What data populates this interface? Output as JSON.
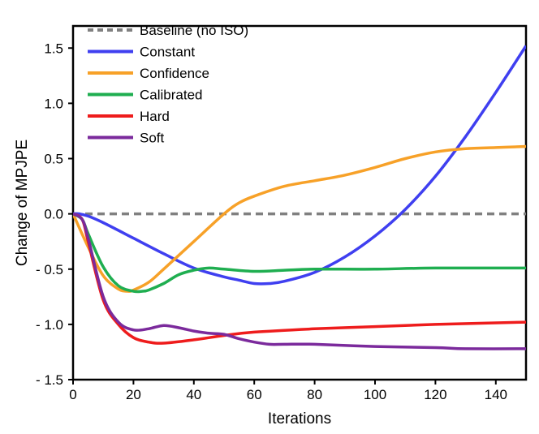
{
  "chart_data": {
    "type": "line",
    "title": "",
    "xlabel": "Iterations",
    "ylabel": "Change of MPJPE",
    "xlim": [
      0,
      150
    ],
    "ylim": [
      -1.5,
      1.7
    ],
    "xticks": [
      0,
      20,
      40,
      60,
      80,
      100,
      120,
      140
    ],
    "xtick_labels": [
      "0",
      "20",
      "40",
      "60",
      "80",
      "100",
      "120",
      "140"
    ],
    "yticks": [
      1.5,
      1.0,
      0.5,
      0.0,
      -0.5,
      -1.0,
      -1.5
    ],
    "ytick_labels": [
      "1.5",
      "1.0",
      "0.5",
      "0.0",
      "- 0.5",
      "- 1.0",
      "- 1.5"
    ],
    "grid": false,
    "legend_position": "top-left",
    "series": [
      {
        "name": "Baseline (no ISO)",
        "color": "#808080",
        "dashed": true,
        "x": [
          0,
          150
        ],
        "y": [
          0.0,
          0.0
        ]
      },
      {
        "name": "Constant",
        "color": "#3f3ff0",
        "dashed": false,
        "x": [
          0,
          2,
          5,
          10,
          20,
          30,
          40,
          50,
          55,
          60,
          65,
          70,
          80,
          90,
          100,
          110,
          120,
          130,
          140,
          150
        ],
        "y": [
          0.0,
          0.0,
          -0.02,
          -0.08,
          -0.22,
          -0.36,
          -0.49,
          -0.57,
          -0.6,
          -0.63,
          -0.63,
          -0.61,
          -0.53,
          -0.39,
          -0.2,
          0.04,
          0.34,
          0.7,
          1.1,
          1.52
        ]
      },
      {
        "name": "Confidence",
        "color": "#f7a128",
        "dashed": false,
        "x": [
          0,
          5,
          10,
          15,
          18,
          20,
          25,
          30,
          40,
          50,
          55,
          60,
          70,
          80,
          90,
          100,
          110,
          120,
          130,
          140,
          150
        ],
        "y": [
          0.0,
          -0.3,
          -0.56,
          -0.68,
          -0.7,
          -0.69,
          -0.62,
          -0.5,
          -0.25,
          0.0,
          0.1,
          0.16,
          0.25,
          0.3,
          0.35,
          0.42,
          0.5,
          0.56,
          0.59,
          0.6,
          0.61
        ]
      },
      {
        "name": "Calibrated",
        "color": "#1fae50",
        "dashed": false,
        "x": [
          0,
          3,
          5,
          10,
          15,
          20,
          23,
          25,
          30,
          35,
          40,
          45,
          50,
          60,
          70,
          80,
          100,
          120,
          150
        ],
        "y": [
          0.0,
          -0.05,
          -0.18,
          -0.48,
          -0.65,
          -0.7,
          -0.7,
          -0.69,
          -0.63,
          -0.55,
          -0.51,
          -0.49,
          -0.5,
          -0.52,
          -0.51,
          -0.5,
          -0.5,
          -0.49,
          -0.49
        ]
      },
      {
        "name": "Hard",
        "color": "#ee1c1c",
        "dashed": false,
        "x": [
          0,
          3,
          5,
          10,
          15,
          20,
          25,
          30,
          40,
          50,
          60,
          80,
          100,
          120,
          150
        ],
        "y": [
          0.0,
          -0.05,
          -0.25,
          -0.78,
          -1.0,
          -1.12,
          -1.16,
          -1.17,
          -1.14,
          -1.1,
          -1.07,
          -1.04,
          -1.02,
          -1.0,
          -0.98
        ]
      },
      {
        "name": "Soft",
        "color": "#7b2a9c",
        "dashed": false,
        "x": [
          0,
          3,
          5,
          10,
          15,
          20,
          25,
          30,
          35,
          40,
          45,
          50,
          55,
          60,
          65,
          70,
          80,
          100,
          120,
          130,
          150
        ],
        "y": [
          0.0,
          -0.05,
          -0.22,
          -0.75,
          -0.98,
          -1.05,
          -1.04,
          -1.01,
          -1.03,
          -1.06,
          -1.08,
          -1.09,
          -1.13,
          -1.16,
          -1.18,
          -1.18,
          -1.18,
          -1.2,
          -1.21,
          -1.22,
          -1.22
        ]
      }
    ]
  }
}
